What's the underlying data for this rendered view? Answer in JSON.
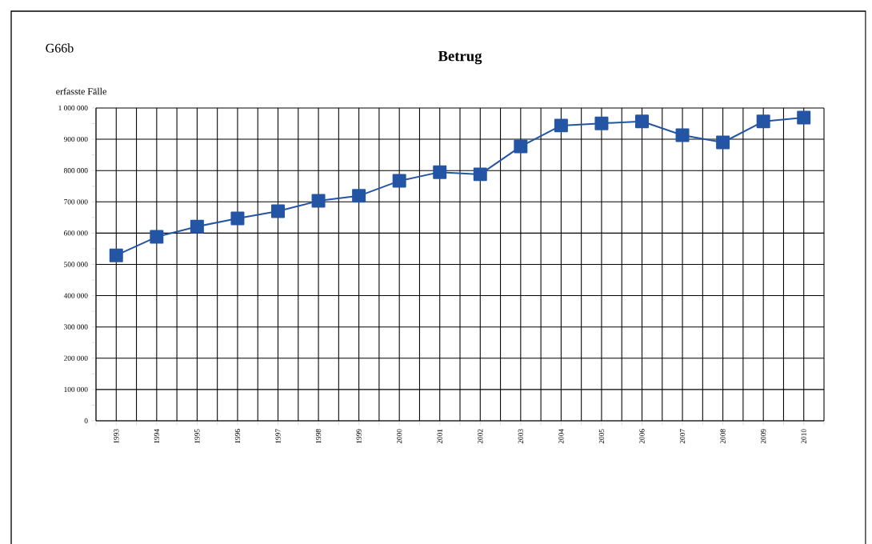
{
  "chart_data": {
    "type": "line",
    "title": "Betrug",
    "ylabel": "erfasste Fälle",
    "annotations": [
      "G66b"
    ],
    "categories": [
      "1993",
      "1994",
      "1995",
      "1996",
      "1997",
      "1998",
      "1999",
      "2000",
      "2001",
      "2002",
      "2003",
      "2004",
      "2005",
      "2006",
      "2007",
      "2008",
      "2009",
      "2010"
    ],
    "series": [
      {
        "color": "#2455a4",
        "values": [
          529000,
          588000,
          621000,
          647000,
          670000,
          703000,
          719000,
          767000,
          795000,
          788000,
          877000,
          944000,
          951000,
          957000,
          913000,
          890000,
          957000,
          969000
        ]
      }
    ],
    "ylim": [
      0,
      1000000
    ],
    "yticks": [
      {
        "value": 0,
        "label": "0"
      },
      {
        "value": 50000,
        "label": null
      },
      {
        "value": 100000,
        "label": "100 000"
      },
      {
        "value": 150000,
        "label": null
      },
      {
        "value": 200000,
        "label": "200 000"
      },
      {
        "value": 250000,
        "label": null
      },
      {
        "value": 300000,
        "label": "300 000"
      },
      {
        "value": 350000,
        "label": null
      },
      {
        "value": 400000,
        "label": "400 000"
      },
      {
        "value": 450000,
        "label": null
      },
      {
        "value": 500000,
        "label": "500 000"
      },
      {
        "value": 550000,
        "label": null
      },
      {
        "value": 600000,
        "label": "600 000"
      },
      {
        "value": 650000,
        "label": null
      },
      {
        "value": 700000,
        "label": "700 000"
      },
      {
        "value": 750000,
        "label": null
      },
      {
        "value": 800000,
        "label": "800 000"
      },
      {
        "value": 850000,
        "label": null
      },
      {
        "value": 900000,
        "label": "900 000"
      },
      {
        "value": 950000,
        "label": null
      },
      {
        "value": 1000000,
        "label": "1 000 000"
      }
    ],
    "grid": true,
    "marker": "square",
    "line_style": "solid"
  }
}
